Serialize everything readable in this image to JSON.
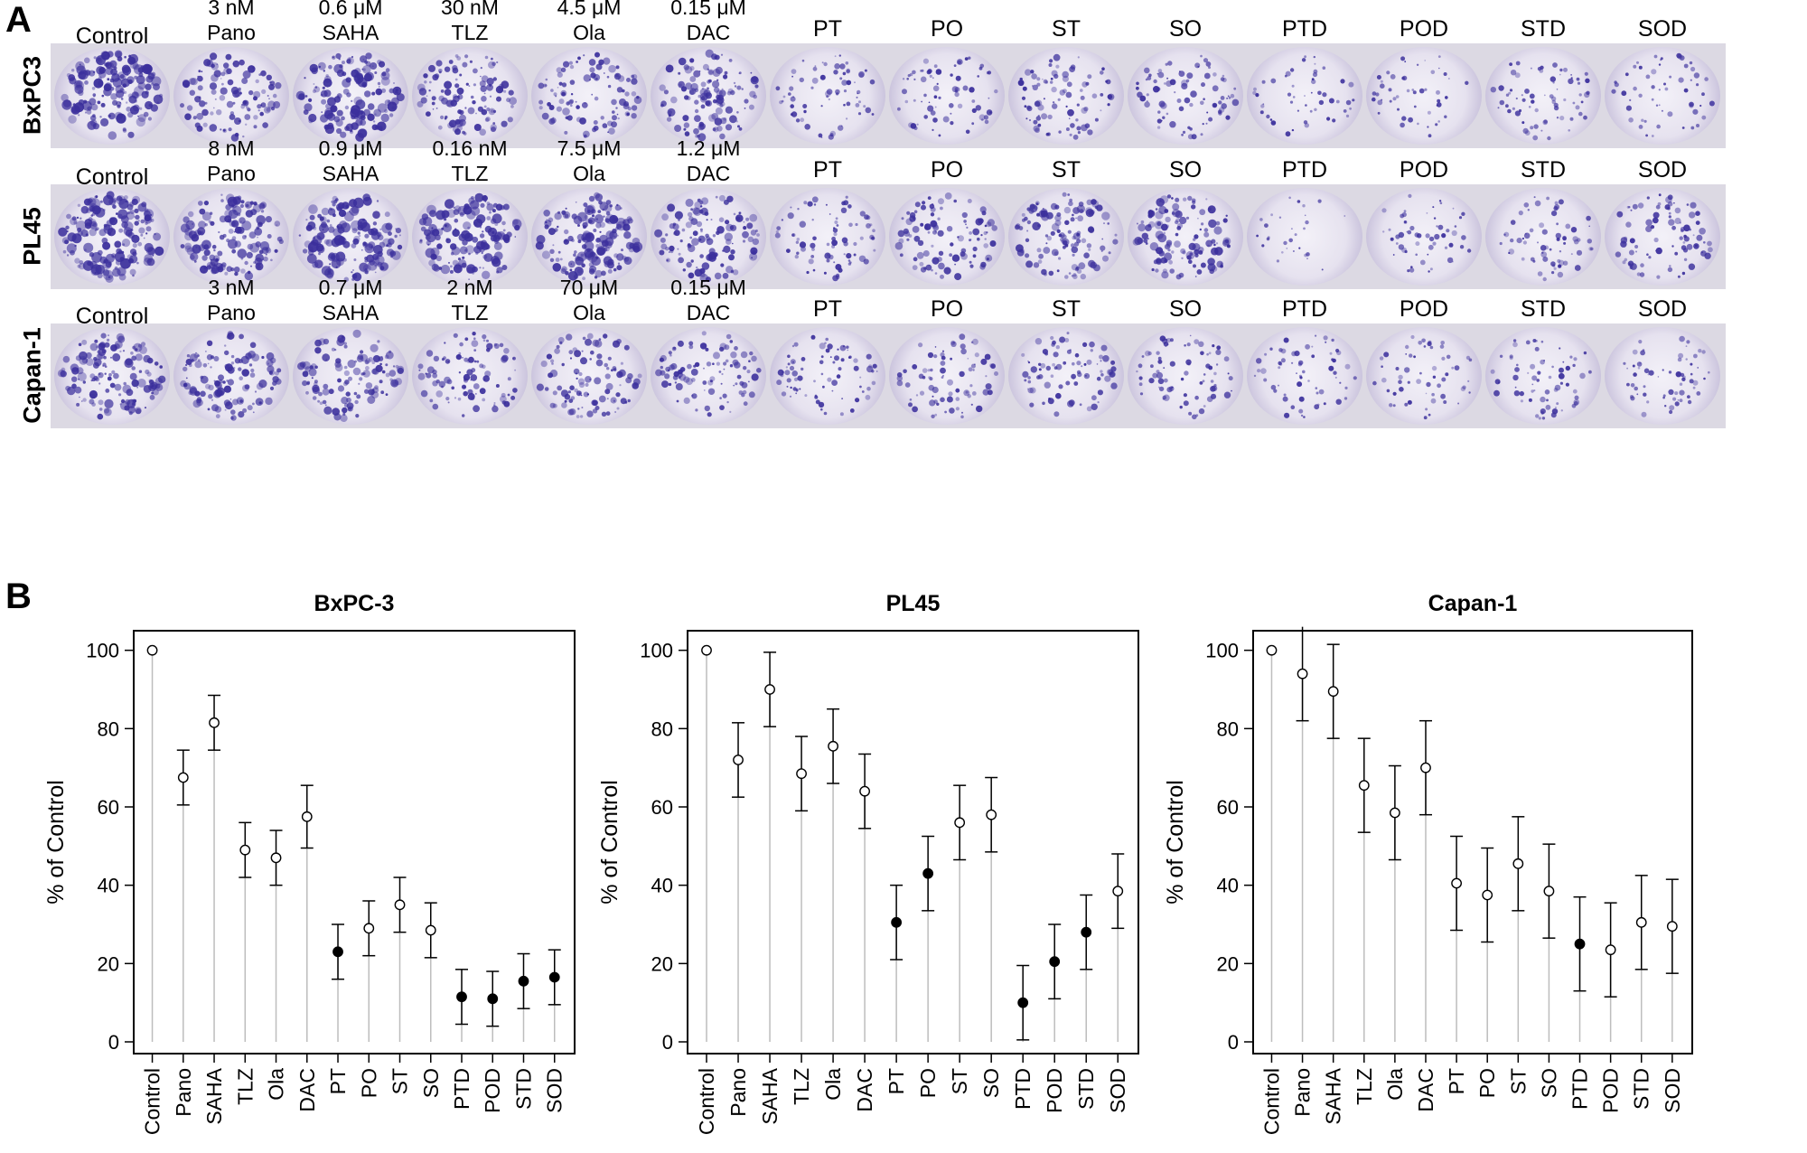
{
  "panel_a": {
    "letter": "A",
    "rows": [
      {
        "cell_line": "BxPC3",
        "wells": [
          {
            "name": "Control",
            "dose": "",
            "density": 0.85
          },
          {
            "name": "Pano",
            "dose": "3 nM",
            "density": 0.55
          },
          {
            "name": "SAHA",
            "dose": "0.6 μM",
            "density": 0.8
          },
          {
            "name": "TLZ",
            "dose": "30 nM",
            "density": 0.55
          },
          {
            "name": "Ola",
            "dose": "4.5 μM",
            "density": 0.5
          },
          {
            "name": "DAC",
            "dose": "0.15 μM",
            "density": 0.6
          },
          {
            "name": "PT",
            "dose": "",
            "density": 0.3
          },
          {
            "name": "PO",
            "dose": "",
            "density": 0.32
          },
          {
            "name": "ST",
            "dose": "",
            "density": 0.4
          },
          {
            "name": "SO",
            "dose": "",
            "density": 0.38
          },
          {
            "name": "PTD",
            "dose": "",
            "density": 0.18
          },
          {
            "name": "POD",
            "dose": "",
            "density": 0.17
          },
          {
            "name": "STD",
            "dose": "",
            "density": 0.3
          },
          {
            "name": "SOD",
            "dose": "",
            "density": 0.22
          }
        ]
      },
      {
        "cell_line": "PL45",
        "wells": [
          {
            "name": "Control",
            "dose": "",
            "density": 0.95
          },
          {
            "name": "Pano",
            "dose": "8 nM",
            "density": 0.8
          },
          {
            "name": "SAHA",
            "dose": "0.9 μM",
            "density": 0.9
          },
          {
            "name": "TLZ",
            "dose": "0.16 nM",
            "density": 0.8
          },
          {
            "name": "Ola",
            "dose": "7.5 μM",
            "density": 0.85
          },
          {
            "name": "DAC",
            "dose": "1.2 μM",
            "density": 0.6
          },
          {
            "name": "PT",
            "dose": "",
            "density": 0.35
          },
          {
            "name": "PO",
            "dose": "",
            "density": 0.5
          },
          {
            "name": "ST",
            "dose": "",
            "density": 0.62
          },
          {
            "name": "SO",
            "dose": "",
            "density": 0.65
          },
          {
            "name": "PTD",
            "dose": "",
            "density": 0.05
          },
          {
            "name": "POD",
            "dose": "",
            "density": 0.22
          },
          {
            "name": "STD",
            "dose": "",
            "density": 0.28
          },
          {
            "name": "SOD",
            "dose": "",
            "density": 0.4
          }
        ]
      },
      {
        "cell_line": "Capan-1",
        "wells": [
          {
            "name": "Control",
            "dose": "",
            "density": 0.7
          },
          {
            "name": "Pano",
            "dose": "3 nM",
            "density": 0.6
          },
          {
            "name": "SAHA",
            "dose": "0.7 μM",
            "density": 0.6
          },
          {
            "name": "TLZ",
            "dose": "2 nM",
            "density": 0.45
          },
          {
            "name": "Ola",
            "dose": "70 μM",
            "density": 0.5
          },
          {
            "name": "DAC",
            "dose": "0.15 μM",
            "density": 0.45
          },
          {
            "name": "PT",
            "dose": "",
            "density": 0.35
          },
          {
            "name": "PO",
            "dose": "",
            "density": 0.35
          },
          {
            "name": "ST",
            "dose": "",
            "density": 0.38
          },
          {
            "name": "SO",
            "dose": "",
            "density": 0.35
          },
          {
            "name": "PTD",
            "dose": "",
            "density": 0.25
          },
          {
            "name": "POD",
            "dose": "",
            "density": 0.22
          },
          {
            "name": "STD",
            "dose": "",
            "density": 0.28
          },
          {
            "name": "SOD",
            "dose": "",
            "density": 0.26
          }
        ]
      }
    ],
    "stain_color": "#3b2f9c"
  },
  "panel_b": {
    "letter": "B"
  },
  "chart_data": [
    {
      "type": "scatter",
      "title": "BxPC-3",
      "xlabel": "",
      "ylabel": "% of Control",
      "ylim": [
        -3,
        105
      ],
      "yticks": [
        0,
        20,
        40,
        60,
        80,
        100
      ],
      "categories": [
        "Control",
        "Pano",
        "SAHA",
        "TLZ",
        "Ola",
        "DAC",
        "PT",
        "PO",
        "ST",
        "SO",
        "PTD",
        "POD",
        "STD",
        "SOD"
      ],
      "values": [
        100,
        67.5,
        81.5,
        49,
        47,
        57.5,
        23,
        29,
        35,
        28.5,
        11.5,
        11,
        15.5,
        16.5
      ],
      "err_low": [
        null,
        60.5,
        74.5,
        42,
        40,
        49.5,
        16,
        22,
        28,
        21.5,
        4.5,
        4,
        8.5,
        9.5
      ],
      "err_high": [
        null,
        74.5,
        88.5,
        56,
        54,
        65.5,
        30,
        36,
        42,
        35.5,
        18.5,
        18,
        22.5,
        23.5
      ],
      "filled": [
        false,
        false,
        false,
        false,
        false,
        false,
        true,
        false,
        false,
        false,
        true,
        true,
        true,
        true
      ],
      "grid": false
    },
    {
      "type": "scatter",
      "title": "PL45",
      "xlabel": "",
      "ylabel": "% of Control",
      "ylim": [
        -3,
        105
      ],
      "yticks": [
        0,
        20,
        40,
        60,
        80,
        100
      ],
      "categories": [
        "Control",
        "Pano",
        "SAHA",
        "TLZ",
        "Ola",
        "DAC",
        "PT",
        "PO",
        "ST",
        "SO",
        "PTD",
        "POD",
        "STD",
        "SOD"
      ],
      "values": [
        100,
        72,
        90,
        68.5,
        75.5,
        64,
        30.5,
        43,
        56,
        58,
        10,
        20.5,
        28,
        38.5
      ],
      "err_low": [
        null,
        62.5,
        80.5,
        59,
        66,
        54.5,
        21,
        33.5,
        46.5,
        48.5,
        0.5,
        11,
        18.5,
        29
      ],
      "err_high": [
        null,
        81.5,
        99.5,
        78,
        85,
        73.5,
        40,
        52.5,
        65.5,
        67.5,
        19.5,
        30,
        37.5,
        48
      ],
      "filled": [
        false,
        false,
        false,
        false,
        false,
        false,
        true,
        true,
        false,
        false,
        true,
        true,
        true,
        false
      ],
      "grid": false
    },
    {
      "type": "scatter",
      "title": "Capan-1",
      "xlabel": "",
      "ylabel": "% of Control",
      "ylim": [
        -3,
        105
      ],
      "yticks": [
        0,
        20,
        40,
        60,
        80,
        100
      ],
      "categories": [
        "Control",
        "Pano",
        "SAHA",
        "TLZ",
        "Ola",
        "DAC",
        "PT",
        "PO",
        "ST",
        "SO",
        "PTD",
        "POD",
        "STD",
        "SOD"
      ],
      "values": [
        100,
        94,
        89.5,
        65.5,
        58.5,
        70,
        40.5,
        37.5,
        45.5,
        38.5,
        25,
        23.5,
        30.5,
        29.5
      ],
      "err_low": [
        null,
        82,
        77.5,
        53.5,
        46.5,
        58,
        28.5,
        25.5,
        33.5,
        26.5,
        13,
        11.5,
        18.5,
        17.5
      ],
      "err_high": [
        null,
        106,
        101.5,
        77.5,
        70.5,
        82,
        52.5,
        49.5,
        57.5,
        50.5,
        37,
        35.5,
        42.5,
        41.5
      ],
      "filled": [
        false,
        false,
        false,
        false,
        false,
        false,
        false,
        false,
        false,
        false,
        true,
        false,
        false,
        false
      ],
      "grid": false
    }
  ]
}
